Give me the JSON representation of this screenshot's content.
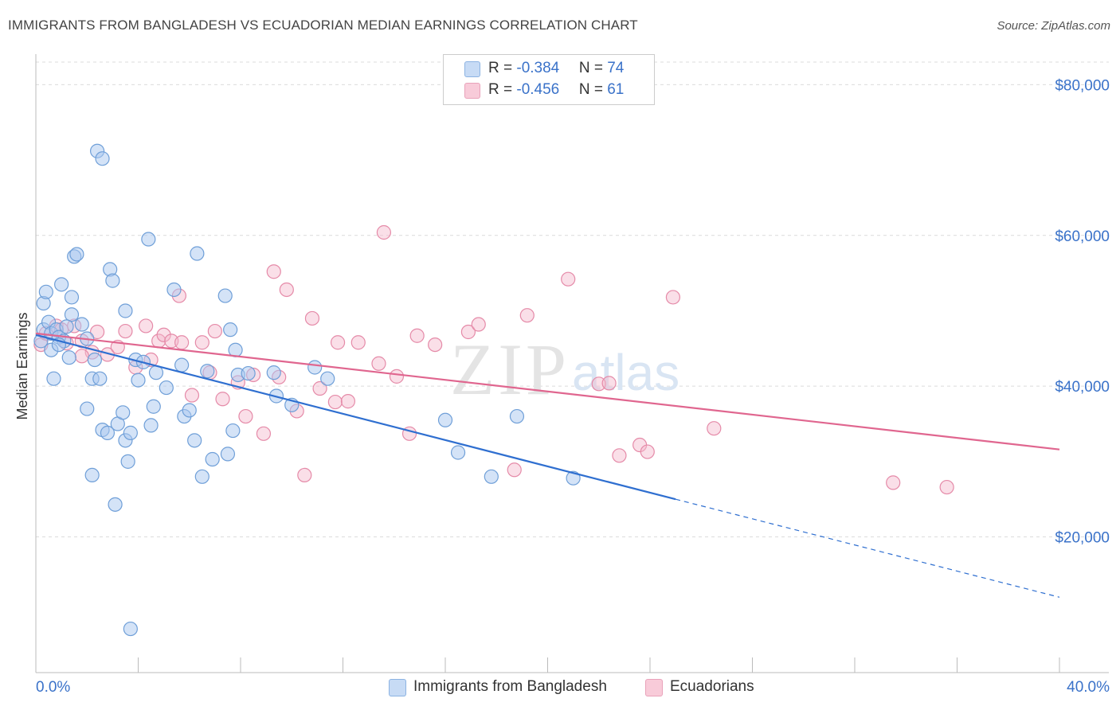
{
  "header": {
    "title": "IMMIGRANTS FROM BANGLADESH VS ECUADORIAN MEDIAN EARNINGS CORRELATION CHART",
    "source": "Source: ZipAtlas.com"
  },
  "watermark": {
    "zip": "ZIP",
    "atlas": "atlas"
  },
  "legend": {
    "rows": [
      {
        "r_label": "R = ",
        "r_value": "-0.384",
        "n_label": "N = ",
        "n_value": "74"
      },
      {
        "r_label": "R = ",
        "r_value": "-0.456",
        "n_label": "N = ",
        "n_value": "61"
      }
    ]
  },
  "bottom_legend": {
    "series1": "Immigrants from Bangladesh",
    "series2": "Ecuadorians"
  },
  "colors": {
    "blue_fill": "#a9c8f0",
    "blue_stroke": "#6f9fd8",
    "blue_line": "#2f6fd0",
    "pink_fill": "#f5b9cc",
    "pink_stroke": "#e58aa8",
    "pink_line": "#e0668f",
    "axis_label": "#3a72c9",
    "grid": "#dcdcdc"
  },
  "chart_data": {
    "type": "scatter",
    "title": "IMMIGRANTS FROM BANGLADESH VS ECUADORIAN MEDIAN EARNINGS CORRELATION CHART",
    "xlabel": "",
    "ylabel": "Median Earnings",
    "xlim": [
      0,
      40
    ],
    "ylim": [
      2000,
      83000
    ],
    "x_tick_labels": [
      "0.0%",
      "40.0%"
    ],
    "y_ticks": [
      20000,
      40000,
      60000,
      80000
    ],
    "y_tick_labels": [
      "$20,000",
      "$40,000",
      "$60,000",
      "$80,000"
    ],
    "grid": true,
    "series": [
      {
        "name": "Immigrants from Bangladesh",
        "color": "blue",
        "r": -0.384,
        "n": 74,
        "points": [
          [
            0.2,
            46000
          ],
          [
            0.3,
            47500
          ],
          [
            0.3,
            51000
          ],
          [
            0.4,
            52500
          ],
          [
            0.5,
            48500
          ],
          [
            0.6,
            47000
          ],
          [
            0.6,
            44800
          ],
          [
            0.7,
            41000
          ],
          [
            0.8,
            47500
          ],
          [
            0.9,
            46500
          ],
          [
            1.0,
            53500
          ],
          [
            1.1,
            46000
          ],
          [
            1.3,
            43800
          ],
          [
            1.4,
            51800
          ],
          [
            1.5,
            57200
          ],
          [
            1.6,
            57500
          ],
          [
            1.4,
            49500
          ],
          [
            1.8,
            48200
          ],
          [
            2.0,
            46300
          ],
          [
            2.2,
            41000
          ],
          [
            2.3,
            43500
          ],
          [
            2.5,
            41000
          ],
          [
            2.6,
            34200
          ],
          [
            2.0,
            37000
          ],
          [
            2.2,
            28200
          ],
          [
            2.8,
            33800
          ],
          [
            2.9,
            55500
          ],
          [
            3.0,
            54000
          ],
          [
            3.2,
            35000
          ],
          [
            3.4,
            36500
          ],
          [
            3.5,
            32800
          ],
          [
            3.5,
            50000
          ],
          [
            3.6,
            30000
          ],
          [
            3.7,
            33800
          ],
          [
            3.9,
            43500
          ],
          [
            4.2,
            43200
          ],
          [
            4.4,
            59500
          ],
          [
            4.5,
            34800
          ],
          [
            4.6,
            37300
          ],
          [
            4.7,
            41800
          ],
          [
            5.1,
            39800
          ],
          [
            5.4,
            52800
          ],
          [
            5.7,
            42800
          ],
          [
            5.8,
            36000
          ],
          [
            6.0,
            36800
          ],
          [
            6.2,
            32800
          ],
          [
            6.3,
            57600
          ],
          [
            6.5,
            28000
          ],
          [
            6.7,
            42000
          ],
          [
            6.9,
            30300
          ],
          [
            7.4,
            52000
          ],
          [
            7.5,
            31000
          ],
          [
            7.6,
            47500
          ],
          [
            7.7,
            34100
          ],
          [
            7.8,
            44800
          ],
          [
            7.9,
            41500
          ],
          [
            8.3,
            41700
          ],
          [
            9.3,
            41800
          ],
          [
            9.4,
            38700
          ],
          [
            10.0,
            37500
          ],
          [
            10.9,
            42500
          ],
          [
            11.4,
            41000
          ],
          [
            16.0,
            35500
          ],
          [
            16.5,
            31200
          ],
          [
            17.8,
            28000
          ],
          [
            18.8,
            36000
          ],
          [
            21.0,
            27800
          ],
          [
            3.7,
            7800
          ],
          [
            3.1,
            24300
          ],
          [
            2.4,
            71200
          ],
          [
            2.6,
            70200
          ],
          [
            4.0,
            40800
          ],
          [
            1.2,
            47900
          ],
          [
            0.9,
            45500
          ]
        ],
        "trend": {
          "x0": 0,
          "y0": 46800,
          "x1": 25,
          "y1": 25000,
          "dashed_to_x": 40,
          "dashed_to_y": 12000
        }
      },
      {
        "name": "Ecuadorians",
        "color": "pink",
        "r": -0.456,
        "n": 61,
        "points": [
          [
            0.2,
            45500
          ],
          [
            0.4,
            47000
          ],
          [
            0.8,
            48000
          ],
          [
            1.0,
            47500
          ],
          [
            1.5,
            48000
          ],
          [
            1.8,
            46000
          ],
          [
            2.2,
            44500
          ],
          [
            2.4,
            47200
          ],
          [
            2.8,
            44200
          ],
          [
            3.2,
            45200
          ],
          [
            3.5,
            47300
          ],
          [
            3.9,
            42500
          ],
          [
            4.3,
            48000
          ],
          [
            4.5,
            43500
          ],
          [
            4.8,
            46000
          ],
          [
            5.0,
            46800
          ],
          [
            5.3,
            46000
          ],
          [
            5.6,
            52000
          ],
          [
            6.1,
            38800
          ],
          [
            6.5,
            45800
          ],
          [
            6.8,
            41800
          ],
          [
            7.0,
            47300
          ],
          [
            7.3,
            38300
          ],
          [
            7.9,
            40500
          ],
          [
            8.2,
            36000
          ],
          [
            8.5,
            41500
          ],
          [
            8.9,
            33700
          ],
          [
            9.5,
            41200
          ],
          [
            9.3,
            55200
          ],
          [
            9.8,
            52800
          ],
          [
            10.2,
            36700
          ],
          [
            10.5,
            28200
          ],
          [
            10.8,
            49000
          ],
          [
            11.1,
            39700
          ],
          [
            11.7,
            37900
          ],
          [
            12.2,
            38000
          ],
          [
            11.8,
            45800
          ],
          [
            12.6,
            45800
          ],
          [
            13.6,
            60400
          ],
          [
            13.4,
            43000
          ],
          [
            14.1,
            41300
          ],
          [
            14.6,
            33700
          ],
          [
            14.9,
            46700
          ],
          [
            15.6,
            45500
          ],
          [
            16.9,
            47200
          ],
          [
            17.3,
            48200
          ],
          [
            18.7,
            28900
          ],
          [
            19.2,
            49400
          ],
          [
            20.8,
            54200
          ],
          [
            22.0,
            40300
          ],
          [
            22.4,
            40400
          ],
          [
            22.8,
            30800
          ],
          [
            23.6,
            32200
          ],
          [
            23.9,
            31300
          ],
          [
            24.9,
            51800
          ],
          [
            26.5,
            34400
          ],
          [
            33.5,
            27200
          ],
          [
            35.6,
            26600
          ],
          [
            1.8,
            44000
          ],
          [
            1.2,
            45700
          ],
          [
            5.7,
            45800
          ]
        ],
        "trend": {
          "x0": 0,
          "y0": 47000,
          "x1": 40,
          "y1": 31600
        }
      }
    ]
  }
}
